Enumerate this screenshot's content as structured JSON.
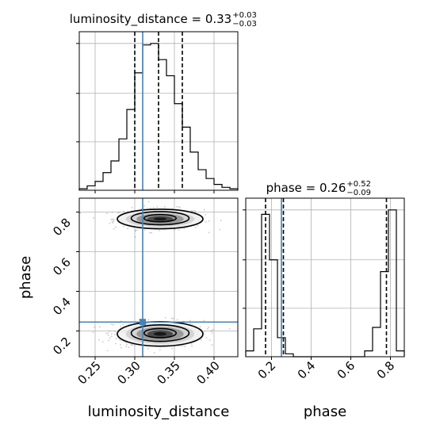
{
  "chart_data": [
    {
      "type": "histogram",
      "panel": "top-left",
      "parameter": "luminosity_distance",
      "title": {
        "label": "luminosity_distance",
        "median": "0.33",
        "plus": "+0.03",
        "minus": "−0.03"
      },
      "xlim": [
        0.23,
        0.43
      ],
      "bin_edges": [
        0.23,
        0.24,
        0.25,
        0.26,
        0.27,
        0.28,
        0.29,
        0.3,
        0.31,
        0.32,
        0.33,
        0.34,
        0.35,
        0.36,
        0.37,
        0.38,
        0.39,
        0.4,
        0.41,
        0.42,
        0.43
      ],
      "counts": [
        0.01,
        0.03,
        0.06,
        0.12,
        0.2,
        0.35,
        0.55,
        0.8,
        0.99,
        1.0,
        0.89,
        0.78,
        0.59,
        0.43,
        0.26,
        0.14,
        0.08,
        0.04,
        0.02,
        0.01
      ],
      "quantiles": [
        0.3,
        0.33,
        0.36
      ],
      "truth": 0.31
    },
    {
      "type": "histogram",
      "panel": "bottom-right",
      "parameter": "phase",
      "title": {
        "label": "phase",
        "median": "0.26",
        "plus": "+0.52",
        "minus": "−0.09"
      },
      "xlim": [
        0.07,
        0.87
      ],
      "xticks": [
        0.2,
        0.4,
        0.6,
        0.8
      ],
      "xtick_labels": [
        "0.2",
        "0.4",
        "0.6",
        "0.8"
      ],
      "xlabel": "phase",
      "bin_edges": [
        0.07,
        0.11,
        0.15,
        0.19,
        0.23,
        0.27,
        0.31,
        0.35,
        0.39,
        0.43,
        0.47,
        0.51,
        0.55,
        0.59,
        0.63,
        0.67,
        0.71,
        0.75,
        0.79,
        0.83,
        0.87
      ],
      "counts": [
        0.04,
        0.19,
        0.97,
        0.66,
        0.13,
        0.02,
        0,
        0,
        0,
        0,
        0,
        0,
        0,
        0,
        0,
        0.04,
        0.2,
        0.58,
        1.0,
        0.04
      ],
      "quantiles": [
        0.17,
        0.26,
        0.78
      ],
      "truth": 0.25
    },
    {
      "type": "scatter-density",
      "panel": "bottom-left",
      "x_parameter": "luminosity_distance",
      "y_parameter": "phase",
      "xlim": [
        0.23,
        0.43
      ],
      "ylim": [
        0.07,
        0.87
      ],
      "xticks": [
        0.25,
        0.3,
        0.35,
        0.4
      ],
      "xtick_labels": [
        "0.25",
        "0.30",
        "0.35",
        "0.40"
      ],
      "yticks": [
        0.2,
        0.4,
        0.6,
        0.8
      ],
      "ytick_labels": [
        "0.2",
        "0.4",
        "0.6",
        "0.8"
      ],
      "xlabel": "luminosity_distance",
      "ylabel": "phase",
      "modes": [
        {
          "x": 0.33,
          "y": 0.765,
          "sx": 0.027,
          "sy": 0.028,
          "weight": 0.45
        },
        {
          "x": 0.33,
          "y": 0.185,
          "sx": 0.027,
          "sy": 0.035,
          "weight": 0.55
        }
      ],
      "truth": {
        "x": 0.31,
        "y": 0.245
      }
    }
  ]
}
